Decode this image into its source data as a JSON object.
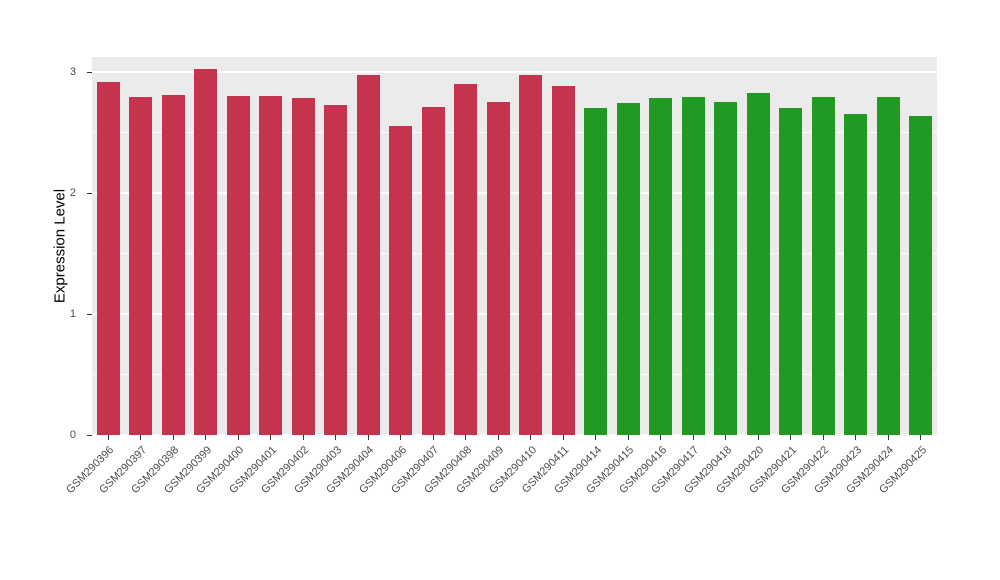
{
  "chart_data": {
    "type": "bar",
    "title": "",
    "xlabel": "",
    "ylabel": "Expression Level",
    "categories": [
      "GSM290396",
      "GSM290397",
      "GSM290398",
      "GSM290399",
      "GSM290400",
      "GSM290401",
      "GSM290402",
      "GSM290403",
      "GSM290404",
      "GSM290406",
      "GSM290407",
      "GSM290408",
      "GSM290409",
      "GSM290410",
      "GSM290411",
      "GSM290414",
      "GSM290415",
      "GSM290416",
      "GSM290417",
      "GSM290418",
      "GSM290420",
      "GSM290421",
      "GSM290422",
      "GSM290423",
      "GSM290424",
      "GSM290425"
    ],
    "values": [
      2.91,
      2.79,
      2.81,
      3.02,
      2.8,
      2.8,
      2.78,
      2.72,
      2.97,
      2.55,
      2.71,
      2.9,
      2.75,
      2.97,
      2.88,
      2.7,
      2.74,
      2.78,
      2.79,
      2.75,
      2.82,
      2.7,
      2.79,
      2.65,
      2.79,
      2.63
    ],
    "bar_colors": [
      "#C5334E",
      "#C5334E",
      "#C5334E",
      "#C5334E",
      "#C5334E",
      "#C5334E",
      "#C5334E",
      "#C5334E",
      "#C5334E",
      "#C5334E",
      "#C5334E",
      "#C5334E",
      "#C5334E",
      "#C5334E",
      "#C5334E",
      "#229922",
      "#229922",
      "#229922",
      "#229922",
      "#229922",
      "#229922",
      "#229922",
      "#229922",
      "#229922",
      "#229922",
      "#229922"
    ],
    "group_colors": {
      "red": "#C5334E",
      "green": "#229922"
    },
    "ylim": [
      0,
      3.12
    ],
    "yticks": [
      "0",
      "1",
      "2",
      "3"
    ],
    "ytick_values": [
      0,
      1,
      2,
      3
    ],
    "minor_tick_values": [
      0.5,
      1.5,
      2.5
    ],
    "grid": "on",
    "legend": "none",
    "panel_bg": "#EBEBEB",
    "grid_color": "#FFFFFF",
    "tick_color": "#333333",
    "tick_label_color": "#4D4D4D"
  }
}
